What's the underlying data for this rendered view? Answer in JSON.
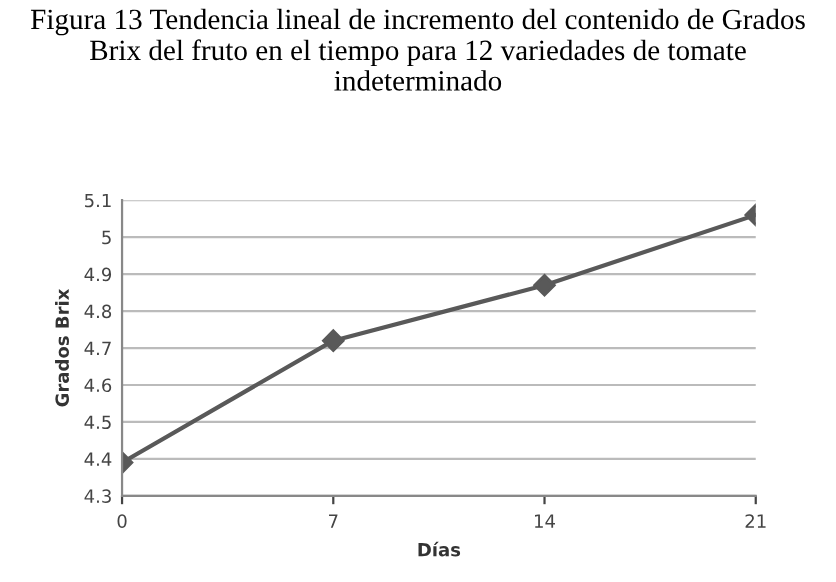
{
  "chart_data": {
    "type": "line",
    "title": "Figura 13 Tendencia lineal de incremento del contenido de Grados Brix del fruto en el tiempo para 12 variedades de tomate indeterminado",
    "xlabel": "Días",
    "ylabel": "Grados Brix",
    "x": [
      0,
      7,
      14,
      21
    ],
    "series": [
      {
        "color": "#595959",
        "values": [
          4.39,
          4.72,
          4.87,
          5.06
        ]
      }
    ],
    "xlim": [
      0,
      21
    ],
    "xticks": [
      0,
      7,
      14,
      21
    ],
    "ylim": [
      4.3,
      5.1
    ],
    "yticks": [
      4.3,
      4.4,
      4.5,
      4.6,
      4.7,
      4.8,
      4.9,
      5,
      5.1
    ],
    "grid": "y",
    "marker": "diamond",
    "line_style": "solid",
    "legend": false
  }
}
